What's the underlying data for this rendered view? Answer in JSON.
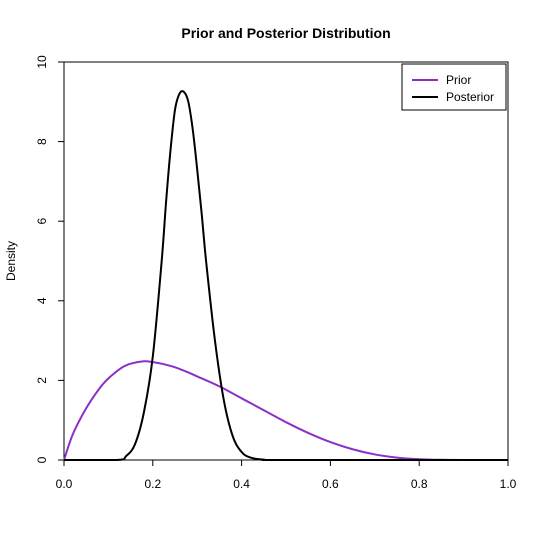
{
  "chart_data": {
    "type": "line",
    "title": "Prior and Posterior Distribution",
    "xlabel": "",
    "ylabel": "Density",
    "xlim": [
      0,
      1
    ],
    "ylim": [
      0,
      10
    ],
    "x_ticks": [
      "0.0",
      "0.2",
      "0.4",
      "0.6",
      "0.8",
      "1.0"
    ],
    "y_ticks": [
      "0",
      "2",
      "4",
      "6",
      "8",
      "10"
    ],
    "grid": false,
    "legend_position": "top-right",
    "series": [
      {
        "name": "Prior",
        "color": "#8b2fc9",
        "x": [
          0.0,
          0.02,
          0.05,
          0.08,
          0.1,
          0.13,
          0.15,
          0.18,
          0.2,
          0.22,
          0.25,
          0.28,
          0.3,
          0.35,
          0.4,
          0.45,
          0.5,
          0.55,
          0.6,
          0.65,
          0.7,
          0.75,
          0.8,
          0.85,
          0.9,
          1.0
        ],
        "values": [
          0.0,
          0.65,
          1.3,
          1.8,
          2.05,
          2.32,
          2.42,
          2.48,
          2.46,
          2.42,
          2.33,
          2.2,
          2.1,
          1.85,
          1.55,
          1.25,
          0.95,
          0.68,
          0.45,
          0.27,
          0.14,
          0.06,
          0.02,
          0.005,
          0.0,
          0.0
        ]
      },
      {
        "name": "Posterior",
        "color": "#000000",
        "x": [
          0.0,
          0.12,
          0.14,
          0.16,
          0.18,
          0.2,
          0.22,
          0.23,
          0.24,
          0.25,
          0.26,
          0.27,
          0.28,
          0.29,
          0.3,
          0.31,
          0.32,
          0.34,
          0.36,
          0.38,
          0.4,
          0.42,
          0.45,
          0.5,
          1.0
        ],
        "values": [
          0.0,
          0.0,
          0.1,
          0.4,
          1.2,
          2.6,
          5.0,
          6.5,
          7.8,
          8.8,
          9.2,
          9.25,
          9.0,
          8.3,
          7.3,
          6.2,
          5.0,
          3.0,
          1.5,
          0.6,
          0.2,
          0.06,
          0.01,
          0.0,
          0.0
        ]
      }
    ]
  }
}
